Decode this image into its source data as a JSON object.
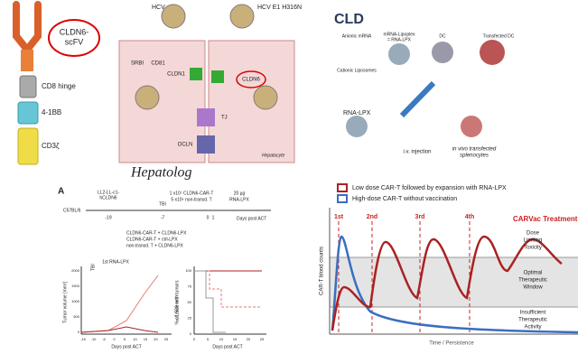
{
  "car_construct": {
    "scfv": [
      "CLDN6-",
      "scFV"
    ],
    "hinge": "CD8 hinge",
    "costim": "4-1BB",
    "signal": "CD3ζ"
  },
  "hepatocyte_panel": {
    "hcv": "HCV",
    "hcv_mutant": "HCV E1 H316N",
    "srbi": "SRBI",
    "cd81": "CD81",
    "cldn1": "CLDN1",
    "cldn6": "CLDN6",
    "tj": "TJ",
    "ocln": "OCLN",
    "cell": "Hepatocyte",
    "source": "Hepatolog"
  },
  "rna_lpx_panel": {
    "title": "CLD",
    "anionic": [
      "Anionic mRNA"
    ],
    "lipoplex": [
      "mRNA-Lipoplex",
      "= RNA-LPX"
    ],
    "cationic": [
      "Cationic Liposomes"
    ],
    "dc": "DC",
    "transfected_dc": "Transfected DC",
    "rna_lpx": "RNA-LPX",
    "injection": "i.v. injection",
    "splenocytes": [
      "in vivo transfected",
      "splenocytes"
    ]
  },
  "panel_a": {
    "label": "A",
    "tumor": [
      "LL2-LL-c1-",
      "hCLDN6"
    ],
    "tbi": "TBI",
    "dose": [
      "1 x10⁷ CLDN6-CAR-T",
      "5 x10⁶ non-transd. T"
    ],
    "lpx": [
      "20 µg",
      "RNA-LPX"
    ],
    "mouse": "C57BL/6",
    "timeline_ticks": [
      "-19",
      "-7",
      "0",
      "1"
    ],
    "timeline_label": "Days post ACT",
    "legend": [
      "CLDN6-CAR-T + CLDN6-LPX",
      "CLDN6-CAR-T + ctrl-LPX",
      "non-transd. T + CLDN6-LPX"
    ],
    "plot1": {
      "y_label": "Tumor volume [mm³]",
      "x_label": "Days post ACT",
      "tbi": "TBI",
      "lpx": "1st RNA-LPX",
      "x_ticks": [
        "-15",
        "-10",
        "-5",
        "0",
        "5",
        "10",
        "15",
        "20",
        "25"
      ],
      "y_ticks": [
        "0",
        "500",
        "1000",
        "1500",
        "2000"
      ]
    },
    "plot2": {
      "y_label": [
        "% of mice with tumors",
        "≤ 1,500 mm³"
      ],
      "x_label": "Days post ACT",
      "x_ticks": [
        "0",
        "5",
        "10",
        "15",
        "20",
        "25"
      ],
      "y_ticks": [
        "0",
        "25",
        "50",
        "75",
        "100"
      ]
    }
  },
  "carvac_panel": {
    "legend": [
      "Low dose CAR-T followed by expansion with RNA-LPX",
      "High-dose CAR-T without vaccination"
    ],
    "treatment": "CARVac Treatment",
    "doses": [
      "1st",
      "2nd",
      "3rd",
      "4th"
    ],
    "zones": {
      "toxicity": [
        "Dose",
        "Limiting",
        "Toxicity"
      ],
      "optimal": [
        "Optimal",
        "Therapeutic",
        "Window"
      ],
      "insufficient": [
        "Insufficient",
        "Therapeutic",
        "Activity"
      ]
    },
    "y_label": "CAR-T blood counts",
    "x_label": "Time / Persistence"
  }
}
